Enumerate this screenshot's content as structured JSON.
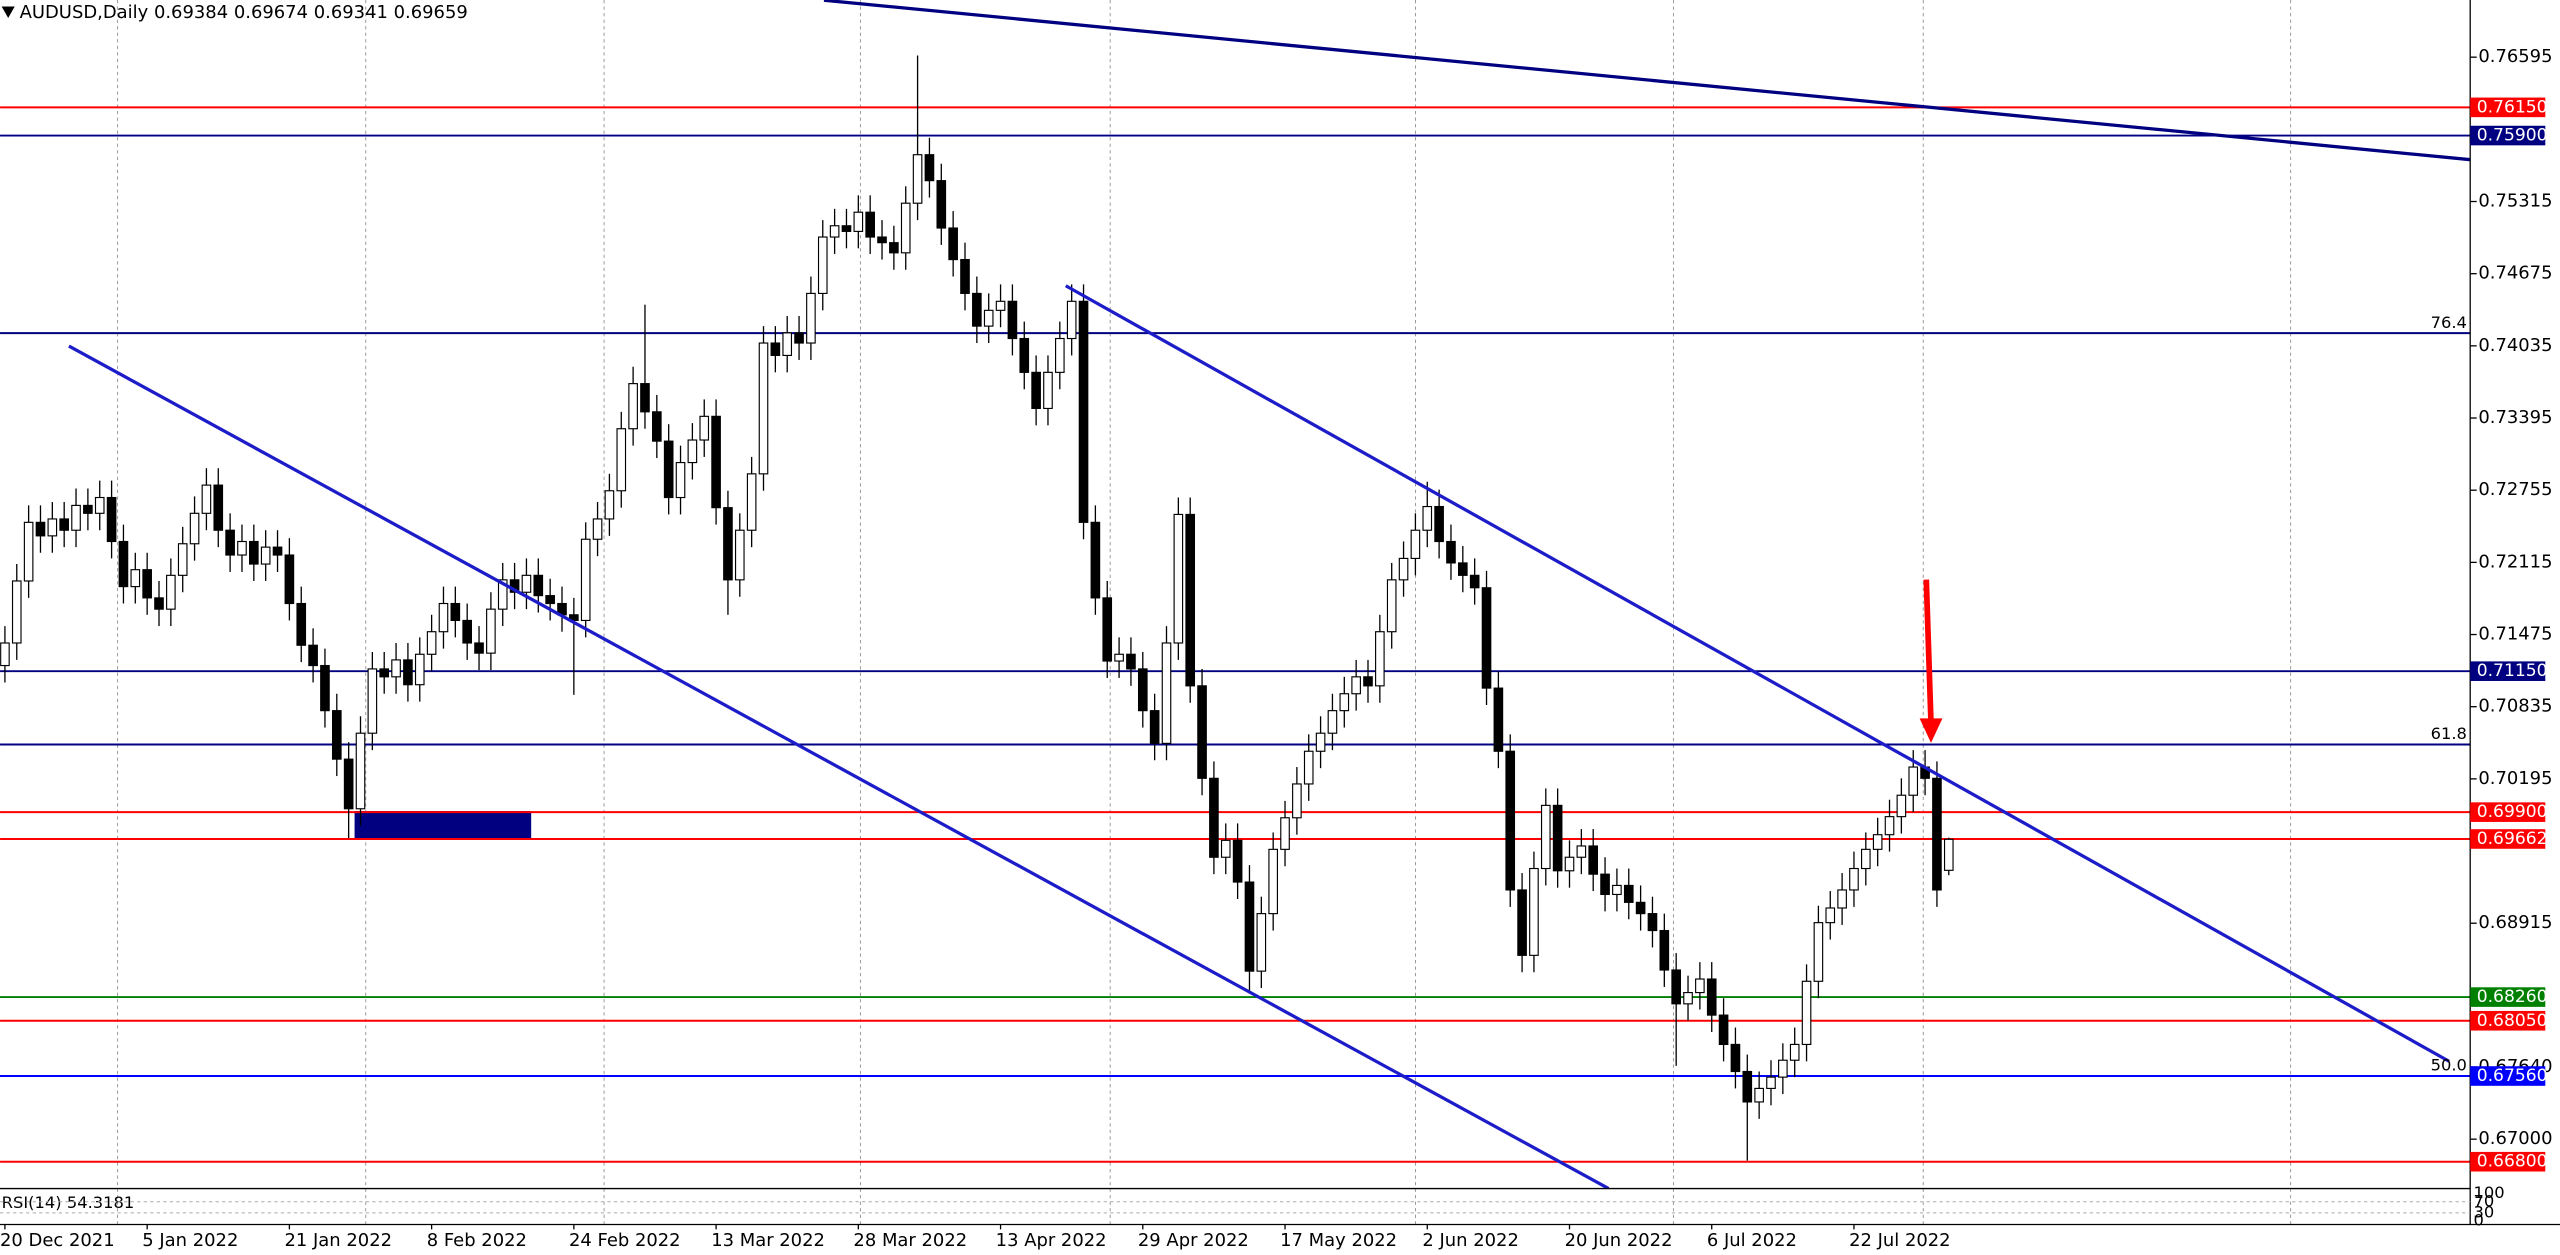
{
  "chart_data": {
    "type": "candlestick",
    "title": "AUDUSD,Daily",
    "categories": [
      "20 Dec 2021",
      null,
      null,
      null,
      null,
      null,
      null,
      null,
      null,
      null,
      null,
      null,
      "5 Jan 2022",
      null,
      null,
      null,
      null,
      null,
      null,
      null,
      null,
      null,
      null,
      null,
      "21 Jan 2022",
      null,
      null,
      null,
      null,
      null,
      null,
      null,
      null,
      null,
      null,
      null,
      "8 Feb 2022",
      null,
      null,
      null,
      null,
      null,
      null,
      null,
      null,
      null,
      null,
      null,
      "24 Feb 2022",
      null,
      null,
      null,
      null,
      null,
      null,
      null,
      null,
      null,
      null,
      null,
      "13 Mar 2022",
      null,
      null,
      null,
      null,
      null,
      null,
      null,
      null,
      null,
      null,
      null,
      "28 Mar 2022",
      null,
      null,
      null,
      null,
      null,
      null,
      null,
      null,
      null,
      null,
      null,
      "13 Apr 2022",
      null,
      null,
      null,
      null,
      null,
      null,
      null,
      null,
      null,
      null,
      null,
      "29 Apr 2022",
      null,
      null,
      null,
      null,
      null,
      null,
      null,
      null,
      null,
      null,
      null,
      "17 May 2022",
      null,
      null,
      null,
      null,
      null,
      null,
      null,
      null,
      null,
      null,
      null,
      "2 Jun 2022",
      null,
      null,
      null,
      null,
      null,
      null,
      null,
      null,
      null,
      null,
      null,
      "20 Jun 2022",
      null,
      null,
      null,
      null,
      null,
      null,
      null,
      null,
      null,
      null,
      null,
      "6 Jul 2022",
      null,
      null,
      null,
      null,
      null,
      null,
      null,
      null,
      null,
      null,
      null,
      "22 Jul 2022",
      null,
      null,
      null,
      null,
      null,
      null,
      null,
      null
    ],
    "series": [
      {
        "open": [
          0.712,
          0.714,
          0.7195,
          0.7247,
          0.7235,
          0.725,
          0.724,
          0.7262,
          0.7255,
          0.7269,
          0.723,
          0.719,
          0.7205,
          0.718,
          0.717,
          0.72,
          0.7228,
          0.7255,
          0.728,
          0.724,
          0.7218,
          0.723,
          0.721,
          0.7225,
          0.7218,
          0.7175,
          0.7138,
          0.712,
          0.708,
          0.7037,
          0.6993,
          0.706,
          0.7117,
          0.711,
          0.7125,
          0.7103,
          0.713,
          0.715,
          0.7175,
          0.716,
          0.714,
          0.7131,
          0.717,
          0.7196,
          0.7185,
          0.72,
          0.7182,
          0.7175,
          0.7165,
          0.716,
          0.7232,
          0.725,
          0.7275,
          0.733,
          0.737,
          0.7345,
          0.7319,
          0.7269,
          0.73,
          0.732,
          0.7341,
          0.726,
          0.7196,
          0.724,
          0.729,
          0.7406,
          0.7395,
          0.7415,
          0.7406,
          0.745,
          0.75,
          0.751,
          0.7505,
          0.7522,
          0.75,
          0.7495,
          0.7486,
          0.753,
          0.7573,
          0.755,
          0.7508,
          0.748,
          0.745,
          0.7421,
          0.7435,
          0.7443,
          0.741,
          0.738,
          0.7348,
          0.738,
          0.741,
          0.7443,
          0.7247,
          0.718,
          0.7124,
          0.713,
          0.7117,
          0.708,
          0.7051,
          0.714,
          0.7254,
          0.7102,
          0.702,
          0.695,
          0.6965,
          0.6928,
          0.6849,
          0.69,
          0.6957,
          0.6985,
          0.7015,
          0.7044,
          0.706,
          0.708,
          0.7095,
          0.711,
          0.7102,
          0.715,
          0.7196,
          0.7215,
          0.724,
          0.7261,
          0.723,
          0.7211,
          0.72,
          0.7189,
          0.71,
          0.7044,
          0.6921,
          0.6863,
          0.694,
          0.6996,
          0.6938,
          0.695,
          0.696,
          0.6935,
          0.6917,
          0.6925,
          0.691,
          0.69,
          0.6885,
          0.685,
          0.682,
          0.683,
          0.6842,
          0.681,
          0.6784,
          0.676,
          0.6733,
          0.6745,
          0.6755,
          0.677,
          0.6784,
          0.684,
          0.6892,
          0.6905,
          0.6921,
          0.694,
          0.6957,
          0.697,
          0.6986,
          0.7005,
          0.703,
          0.702,
          0.69384
        ],
        "high": [
          0.7155,
          0.721,
          0.7262,
          0.7262,
          0.7265,
          0.7265,
          0.7277,
          0.7277,
          0.7284,
          0.7284,
          0.7245,
          0.722,
          0.722,
          0.7195,
          0.7215,
          0.7243,
          0.727,
          0.7295,
          0.7295,
          0.7255,
          0.7245,
          0.7245,
          0.724,
          0.724,
          0.7233,
          0.719,
          0.7153,
          0.7135,
          0.7095,
          0.7052,
          0.7075,
          0.7132,
          0.7132,
          0.714,
          0.714,
          0.7145,
          0.7165,
          0.719,
          0.719,
          0.7175,
          0.7155,
          0.7185,
          0.7211,
          0.7211,
          0.7215,
          0.7215,
          0.7197,
          0.719,
          0.718,
          0.7247,
          0.7265,
          0.729,
          0.7345,
          0.7385,
          0.744,
          0.736,
          0.7334,
          0.7315,
          0.7335,
          0.7356,
          0.7356,
          0.7275,
          0.7255,
          0.7305,
          0.7421,
          0.7421,
          0.743,
          0.743,
          0.7465,
          0.7515,
          0.7525,
          0.7525,
          0.7537,
          0.7537,
          0.7515,
          0.751,
          0.7545,
          0.7661,
          0.7588,
          0.7565,
          0.7523,
          0.7495,
          0.7465,
          0.745,
          0.7458,
          0.7458,
          0.7425,
          0.7395,
          0.7395,
          0.7425,
          0.7458,
          0.7458,
          0.7262,
          0.7195,
          0.7145,
          0.7145,
          0.7132,
          0.7095,
          0.7155,
          0.7269,
          0.7269,
          0.7117,
          0.7035,
          0.698,
          0.698,
          0.6943,
          0.6915,
          0.6972,
          0.7,
          0.703,
          0.7059,
          0.7075,
          0.7095,
          0.711,
          0.7125,
          0.7125,
          0.7165,
          0.7211,
          0.723,
          0.7255,
          0.7283,
          0.7276,
          0.7245,
          0.7226,
          0.7215,
          0.7204,
          0.7115,
          0.7059,
          0.6936,
          0.6955,
          0.7011,
          0.7011,
          0.6965,
          0.6975,
          0.6975,
          0.695,
          0.694,
          0.694,
          0.6925,
          0.6915,
          0.69,
          0.6865,
          0.6845,
          0.6857,
          0.6857,
          0.6825,
          0.6799,
          0.6775,
          0.676,
          0.677,
          0.6785,
          0.6799,
          0.6855,
          0.6907,
          0.692,
          0.6936,
          0.6955,
          0.6972,
          0.6985,
          0.7001,
          0.702,
          0.7045,
          0.7045,
          0.7035,
          0.69674
        ],
        "low": [
          0.7105,
          0.7125,
          0.718,
          0.722,
          0.722,
          0.7225,
          0.7225,
          0.724,
          0.724,
          0.7215,
          0.7175,
          0.7175,
          0.7165,
          0.7155,
          0.7155,
          0.7185,
          0.7213,
          0.724,
          0.7225,
          0.7203,
          0.7203,
          0.7195,
          0.7195,
          0.7203,
          0.716,
          0.7123,
          0.7105,
          0.7065,
          0.7022,
          0.6967,
          0.6978,
          0.7045,
          0.7095,
          0.7095,
          0.7088,
          0.7088,
          0.7115,
          0.7135,
          0.7145,
          0.7125,
          0.7116,
          0.7116,
          0.7155,
          0.717,
          0.717,
          0.7167,
          0.716,
          0.715,
          0.7094,
          0.7145,
          0.7217,
          0.7235,
          0.726,
          0.7315,
          0.733,
          0.7304,
          0.7254,
          0.7254,
          0.7285,
          0.7305,
          0.7245,
          0.7165,
          0.7181,
          0.7225,
          0.7275,
          0.738,
          0.738,
          0.7391,
          0.7391,
          0.7435,
          0.7485,
          0.749,
          0.749,
          0.7485,
          0.748,
          0.7471,
          0.7471,
          0.7515,
          0.7535,
          0.7493,
          0.7465,
          0.7435,
          0.7406,
          0.7406,
          0.742,
          0.7395,
          0.7365,
          0.7333,
          0.7333,
          0.7365,
          0.7395,
          0.7232,
          0.7165,
          0.7109,
          0.7109,
          0.7102,
          0.7065,
          0.7036,
          0.7036,
          0.7125,
          0.7087,
          0.7005,
          0.6935,
          0.6935,
          0.6913,
          0.6829,
          0.6834,
          0.6885,
          0.6942,
          0.697,
          0.7,
          0.7029,
          0.7045,
          0.7065,
          0.708,
          0.7087,
          0.7087,
          0.7135,
          0.7181,
          0.72,
          0.7225,
          0.7215,
          0.7196,
          0.7185,
          0.7174,
          0.7085,
          0.7029,
          0.6906,
          0.6848,
          0.6848,
          0.6925,
          0.6923,
          0.6923,
          0.6935,
          0.692,
          0.6902,
          0.6902,
          0.6895,
          0.6885,
          0.687,
          0.6835,
          0.6765,
          0.6805,
          0.6815,
          0.6795,
          0.6769,
          0.6745,
          0.6681,
          0.6718,
          0.673,
          0.674,
          0.6755,
          0.6769,
          0.6825,
          0.6877,
          0.689,
          0.6906,
          0.6925,
          0.6942,
          0.6955,
          0.6971,
          0.699,
          0.7005,
          0.6906,
          0.69341
        ],
        "close": [
          0.714,
          0.7195,
          0.7247,
          0.7235,
          0.725,
          0.724,
          0.7262,
          0.7255,
          0.7269,
          0.723,
          0.719,
          0.7205,
          0.718,
          0.717,
          0.72,
          0.7228,
          0.7255,
          0.728,
          0.724,
          0.7218,
          0.723,
          0.721,
          0.7225,
          0.7218,
          0.7175,
          0.7138,
          0.712,
          0.708,
          0.7037,
          0.6993,
          0.706,
          0.7117,
          0.711,
          0.7125,
          0.7103,
          0.713,
          0.715,
          0.7175,
          0.716,
          0.714,
          0.7131,
          0.717,
          0.7196,
          0.7185,
          0.72,
          0.7182,
          0.7175,
          0.7165,
          0.716,
          0.7232,
          0.725,
          0.7275,
          0.733,
          0.737,
          0.7345,
          0.7319,
          0.7269,
          0.73,
          0.732,
          0.7341,
          0.726,
          0.7196,
          0.724,
          0.729,
          0.7406,
          0.7395,
          0.7415,
          0.7406,
          0.745,
          0.75,
          0.751,
          0.7505,
          0.7522,
          0.75,
          0.7495,
          0.7486,
          0.753,
          0.7573,
          0.755,
          0.7508,
          0.748,
          0.745,
          0.7421,
          0.7435,
          0.7443,
          0.741,
          0.738,
          0.7348,
          0.738,
          0.741,
          0.7443,
          0.7247,
          0.718,
          0.7124,
          0.713,
          0.7117,
          0.708,
          0.7051,
          0.714,
          0.7254,
          0.7102,
          0.702,
          0.695,
          0.6965,
          0.6928,
          0.6849,
          0.69,
          0.6957,
          0.6985,
          0.7015,
          0.7044,
          0.706,
          0.708,
          0.7095,
          0.711,
          0.7102,
          0.715,
          0.7196,
          0.7215,
          0.724,
          0.7261,
          0.723,
          0.7211,
          0.72,
          0.7189,
          0.71,
          0.7044,
          0.6921,
          0.6863,
          0.694,
          0.6996,
          0.6938,
          0.695,
          0.696,
          0.6935,
          0.6917,
          0.6925,
          0.691,
          0.69,
          0.6885,
          0.685,
          0.682,
          0.683,
          0.6842,
          0.681,
          0.6784,
          0.676,
          0.6733,
          0.6745,
          0.6755,
          0.677,
          0.6784,
          0.684,
          0.6892,
          0.6905,
          0.6921,
          0.694,
          0.6957,
          0.697,
          0.6986,
          0.7005,
          0.703,
          0.702,
          0.6921,
          0.69659
        ],
        "up_color": "#ffffff",
        "down_color": "#000000"
      }
    ],
    "ylim": [
      0.66562,
      0.77102
    ],
    "yticks": [
      0.76595,
      0.75315,
      0.74675,
      0.74035,
      0.73395,
      0.72755,
      0.72115,
      0.71475,
      0.70835,
      0.70195,
      0.68915,
      {
        "value": 0.6764,
        "label": "0.67640"
      },
      {
        "value": 0.67,
        "label": "0.67000"
      }
    ],
    "levels": {
      "values": [
        0.7615,
        0.759,
        0.7115,
        0.699,
        0.69662,
        0.6826,
        0.6805,
        0.6756,
        0.668
      ],
      "value_labels": [
        "0.76150",
        "0.75900",
        "0.71150",
        "0.69900",
        "0.69662",
        "0.68260",
        "0.68050",
        "0.67560",
        "0.66800"
      ],
      "colors": [
        "#ff0000",
        "#000080",
        "#000080",
        "#ff0000",
        "#ff0000",
        "#008000",
        "#ff0000",
        "#0000ff",
        "#ff0000"
      ]
    },
    "fib_levels": {
      "values": [
        0.74148,
        0.705,
        0.6756
      ],
      "labels": [
        "76.4",
        "61.8",
        "50.0"
      ],
      "color": "#000080"
    },
    "trendlines": [
      {
        "x": [
          69.1,
          208.3
        ],
        "y": [
          0.771,
          0.75683
        ],
        "color": "#000080"
      },
      {
        "x": [
          5.4,
          135.3
        ],
        "y": [
          0.74033,
          0.66562
        ],
        "color": "#1c1cc8"
      },
      {
        "x": [
          89.5,
          206.2
        ],
        "y": [
          0.74568,
          0.67691
        ],
        "color": "#1c1cc8"
      }
    ],
    "arrow": {
      "x": [
        162.1,
        162.5
      ],
      "y": [
        0.71962,
        0.70514
      ],
      "color": "#ff0000"
    },
    "zone": {
      "x": [
        29.5,
        44.4
      ],
      "y": [
        0.6991,
        0.6967
      ],
      "color": "#000080"
    },
    "rsi": {
      "label": "RSI(14)",
      "value": 54.3181,
      "ylim": [
        0,
        100
      ],
      "yticks": [
        100,
        70,
        30,
        0
      ]
    }
  }
}
